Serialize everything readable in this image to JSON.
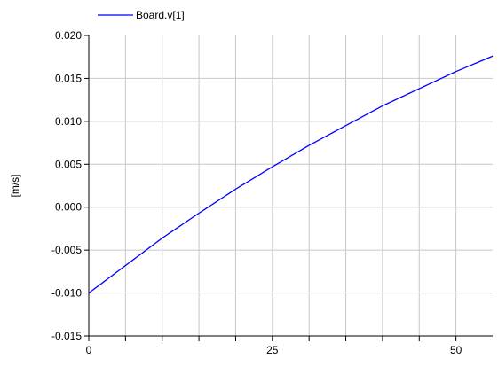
{
  "chart_data": {
    "type": "line",
    "title": "",
    "xlabel": "",
    "ylabel": "[m/s]",
    "xlim": [
      0,
      55
    ],
    "ylim": [
      -0.015,
      0.02
    ],
    "grid": true,
    "legend_position": "top-left",
    "x_ticks": [
      0,
      25,
      50
    ],
    "x_tick_labels": [
      "0",
      "25",
      "50"
    ],
    "x_minor_ticks": [
      5,
      10,
      15,
      20,
      30,
      35,
      40,
      45
    ],
    "y_ticks": [
      -0.015,
      -0.01,
      -0.005,
      0.0,
      0.005,
      0.01,
      0.015,
      0.02
    ],
    "y_tick_labels": [
      "-0.015",
      "-0.010",
      "-0.005",
      "0.000",
      "0.005",
      "0.010",
      "0.015",
      "0.020"
    ],
    "series": [
      {
        "name": "Board.v[1]",
        "color": "#0000ff",
        "x": [
          0,
          5,
          10,
          15,
          20,
          25,
          30,
          35,
          40,
          45,
          50,
          55
        ],
        "y": [
          -0.01,
          -0.0068,
          -0.0036,
          -0.0007,
          0.0021,
          0.0047,
          0.0072,
          0.0095,
          0.0118,
          0.0138,
          0.0158,
          0.0176
        ]
      }
    ]
  }
}
